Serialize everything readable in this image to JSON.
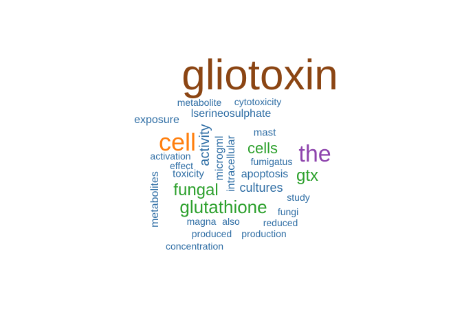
{
  "colors": {
    "brown": "#8B4513",
    "orange": "#FF7F0E",
    "purple": "#8E44AD",
    "green": "#2CA02C",
    "blue": "#2E6DA4"
  },
  "words": [
    {
      "id": "gliotoxin",
      "text": "gliotoxin",
      "weight": 1.0,
      "color": "brown"
    },
    {
      "id": "metabolite",
      "text": "metabolite",
      "weight": 0.1,
      "color": "blue"
    },
    {
      "id": "cytotoxicity",
      "text": "cytotoxicity",
      "weight": 0.1,
      "color": "blue"
    },
    {
      "id": "lserineosulphate",
      "text": "lserineosulphate",
      "weight": 0.15,
      "color": "blue"
    },
    {
      "id": "exposure",
      "text": "exposure",
      "weight": 0.15,
      "color": "blue"
    },
    {
      "id": "mast",
      "text": "mast",
      "weight": 0.12,
      "color": "blue"
    },
    {
      "id": "cell",
      "text": "cell",
      "weight": 0.5,
      "color": "orange"
    },
    {
      "id": "activity",
      "text": "activity",
      "weight": 0.25,
      "color": "blue"
    },
    {
      "id": "microgml",
      "text": "microgml",
      "weight": 0.15,
      "color": "blue"
    },
    {
      "id": "intracellular",
      "text": "intracellular",
      "weight": 0.15,
      "color": "blue"
    },
    {
      "id": "cells",
      "text": "cells",
      "weight": 0.3,
      "color": "green"
    },
    {
      "id": "the",
      "text": "the",
      "weight": 0.45,
      "color": "purple"
    },
    {
      "id": "activation",
      "text": "activation",
      "weight": 0.1,
      "color": "blue"
    },
    {
      "id": "effect",
      "text": "effect",
      "weight": 0.1,
      "color": "blue"
    },
    {
      "id": "fumigatus",
      "text": "fumigatus",
      "weight": 0.1,
      "color": "blue"
    },
    {
      "id": "toxicity",
      "text": "toxicity",
      "weight": 0.12,
      "color": "blue"
    },
    {
      "id": "apoptosis",
      "text": "apoptosis",
      "weight": 0.15,
      "color": "blue"
    },
    {
      "id": "gtx",
      "text": "gtx",
      "weight": 0.3,
      "color": "green"
    },
    {
      "id": "metabolites",
      "text": "metabolites",
      "weight": 0.15,
      "color": "blue"
    },
    {
      "id": "fungal",
      "text": "fungal",
      "weight": 0.3,
      "color": "green"
    },
    {
      "id": "cultures",
      "text": "cultures",
      "weight": 0.2,
      "color": "blue"
    },
    {
      "id": "study",
      "text": "study",
      "weight": 0.1,
      "color": "blue"
    },
    {
      "id": "glutathione",
      "text": "glutathione",
      "weight": 0.35,
      "color": "green"
    },
    {
      "id": "fungi",
      "text": "fungi",
      "weight": 0.1,
      "color": "blue"
    },
    {
      "id": "magna",
      "text": "magna",
      "weight": 0.1,
      "color": "blue"
    },
    {
      "id": "also",
      "text": "also",
      "weight": 0.1,
      "color": "blue"
    },
    {
      "id": "reduced",
      "text": "reduced",
      "weight": 0.1,
      "color": "blue"
    },
    {
      "id": "produced",
      "text": "produced",
      "weight": 0.1,
      "color": "blue"
    },
    {
      "id": "production",
      "text": "production",
      "weight": 0.1,
      "color": "blue"
    },
    {
      "id": "concentration",
      "text": "concentration",
      "weight": 0.1,
      "color": "blue"
    }
  ]
}
